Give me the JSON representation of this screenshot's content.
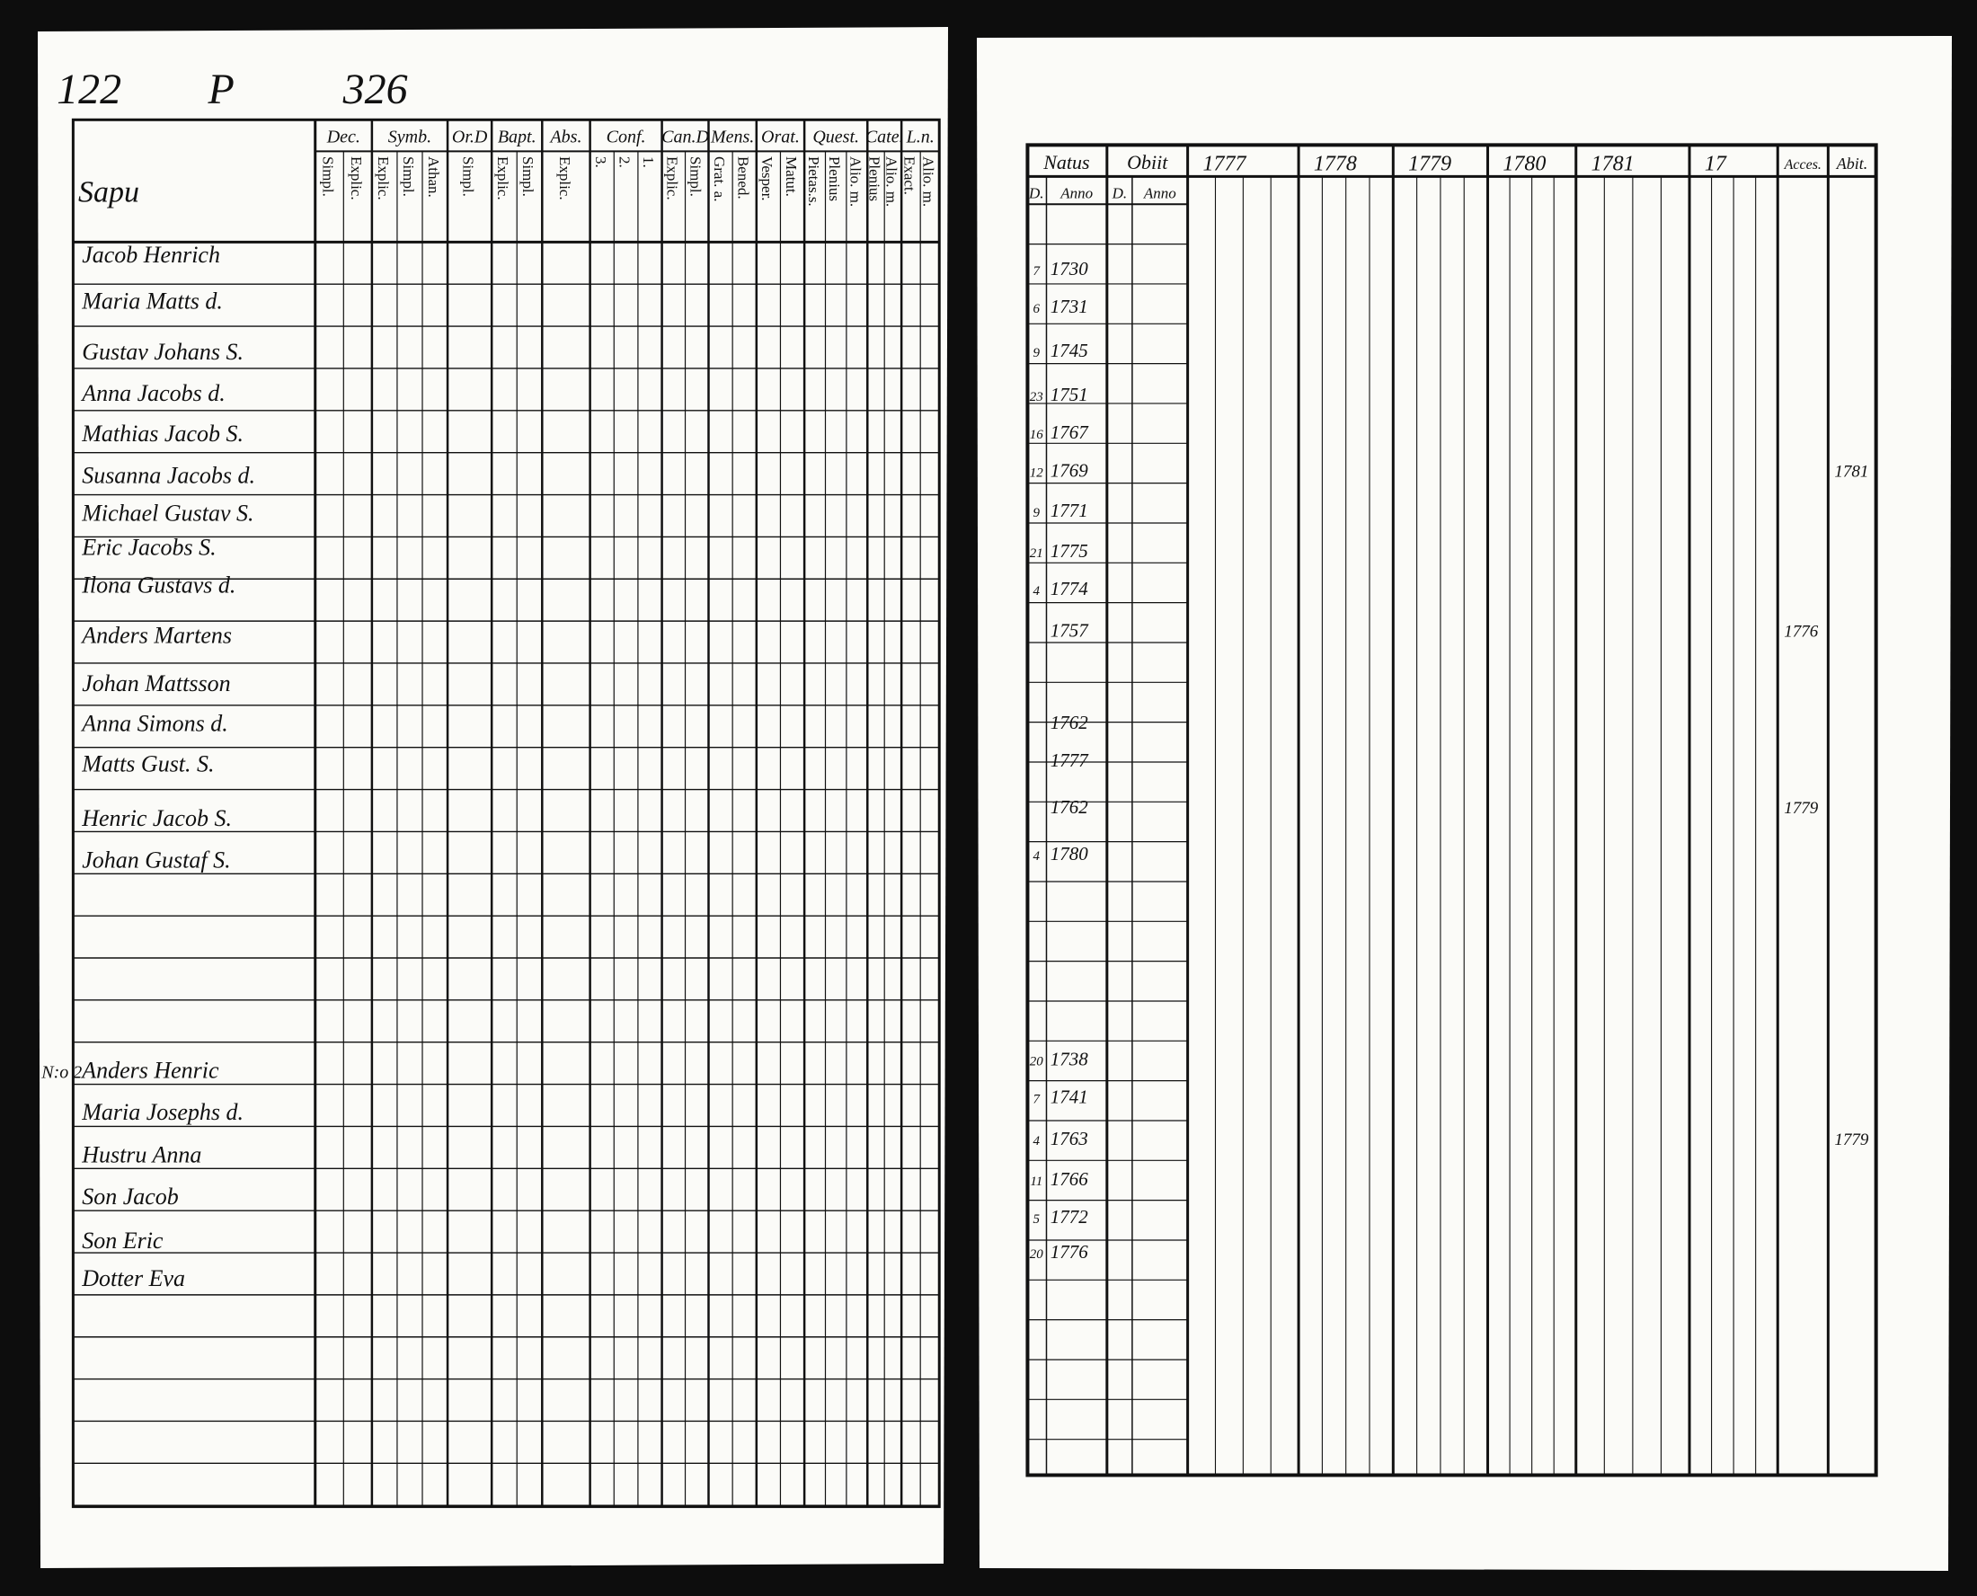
{
  "left_page": {
    "page_number": "122",
    "letter": "P",
    "number": "326",
    "village": "Sapu",
    "column_groups": [
      {
        "title": "Dec.",
        "subs": [
          "Simpl.",
          "Explic."
        ]
      },
      {
        "title": "Symb.",
        "subs": [
          "Explic.",
          "Simpl.",
          "Athan."
        ]
      },
      {
        "title": "Or.D",
        "subs": [
          "Simpl."
        ]
      },
      {
        "title": "Bapt.",
        "subs": [
          "Explic.",
          "Simpl."
        ]
      },
      {
        "title": "Abs.",
        "subs": [
          "Explic."
        ]
      },
      {
        "title": "Conf.",
        "subs": [
          "3.",
          "2.",
          "1."
        ]
      },
      {
        "title": "Can.D",
        "subs": [
          "Explic.",
          "Simpl."
        ]
      },
      {
        "title": "Mens.",
        "subs": [
          "Grat. a.",
          "Bened."
        ]
      },
      {
        "title": "Orat.",
        "subs": [
          "Vesper.",
          "Matut."
        ]
      },
      {
        "title": "Quest.",
        "subs": [
          "Pietas.s.",
          "Plenius",
          "Alio. m."
        ]
      },
      {
        "title": "Cate.",
        "subs": [
          "Plenius",
          "Alio. m."
        ]
      },
      {
        "title": "L.n.",
        "subs": [
          "Exact.",
          "Alio. m."
        ]
      }
    ],
    "rows": [
      {
        "name": "Jacob Henrich"
      },
      {
        "name": "Maria Matts d."
      },
      {
        "name": "Gustav Johans S."
      },
      {
        "name": "Anna Jacobs d."
      },
      {
        "name": "Mathias Jacob S."
      },
      {
        "name": "Susanna Jacobs d."
      },
      {
        "name": "Michael Gustav S."
      },
      {
        "name": "Eric Jacobs S."
      },
      {
        "name": "Ilona Gustavs d."
      },
      {
        "name": "Anders Martens"
      },
      {
        "name": "Johan Mattsson"
      },
      {
        "name": "Anna Simons d."
      },
      {
        "name": "Matts Gust. S."
      },
      {
        "name": "Henric Jacob S."
      },
      {
        "name": "Johan Gustaf S."
      },
      {
        "name": "Anders Henric",
        "prefix": "N:o 2"
      },
      {
        "name": "Maria Josephs d."
      },
      {
        "name": "Hustru Anna"
      },
      {
        "name": "Son Jacob"
      },
      {
        "name": "Son Eric"
      },
      {
        "name": "Dotter Eva"
      }
    ]
  },
  "right_page": {
    "headers": {
      "natus": "Natus",
      "natus_d": "D.",
      "natus_anno": "Anno",
      "obiit": "Obiit",
      "obiit_d": "D.",
      "obiit_anno": "Anno",
      "years": [
        "1777",
        "1778",
        "1779",
        "1780",
        "1781",
        "17"
      ],
      "acces": "Acces.",
      "abit": "Abit."
    },
    "rows": [
      {
        "day": "7",
        "anno": "1730"
      },
      {
        "day": "6",
        "anno": "1731"
      },
      {
        "day": "9",
        "anno": "1745"
      },
      {
        "day": "23",
        "anno": "1751"
      },
      {
        "day": "16",
        "anno": "1767"
      },
      {
        "day": "12",
        "anno": "1769",
        "abit": "1781"
      },
      {
        "day": "9",
        "anno": "1771"
      },
      {
        "day": "21",
        "anno": "1775"
      },
      {
        "day": "4",
        "anno": "1774"
      },
      {
        "anno": "1757",
        "acces": "1776"
      },
      {
        "anno": "1762"
      },
      {
        "anno": "1777"
      },
      {
        "anno": "1762",
        "acces": "1779"
      },
      {
        "day": "4",
        "anno": "1780"
      },
      {
        "day": "20",
        "anno": "1738"
      },
      {
        "day": "7",
        "anno": "1741"
      },
      {
        "day": "4",
        "anno": "1763",
        "abit": "1779"
      },
      {
        "day": "11",
        "anno": "1766"
      },
      {
        "day": "5",
        "anno": "1772"
      },
      {
        "day": "20",
        "anno": "1776"
      }
    ]
  }
}
